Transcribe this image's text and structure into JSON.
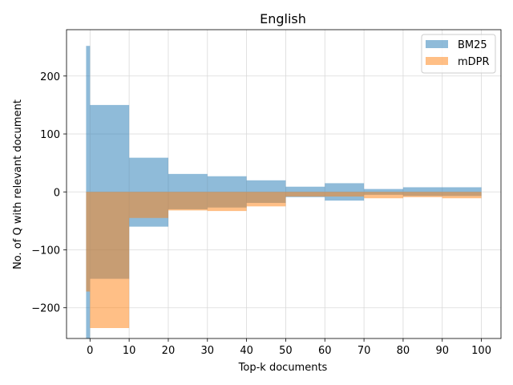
{
  "chart_data": {
    "type": "bar",
    "title": "English",
    "xlabel": "Top-k documents",
    "ylabel": "No. of Q with relevant document",
    "xlim": [
      -6,
      105
    ],
    "ylim": [
      -253,
      280
    ],
    "xticks": [
      0,
      10,
      20,
      30,
      40,
      50,
      60,
      70,
      80,
      90,
      100
    ],
    "xtick_labels": [
      "0",
      "10",
      "20",
      "30",
      "40",
      "50",
      "60",
      "70",
      "80",
      "90",
      "100"
    ],
    "yticks": [
      -200,
      -100,
      0,
      100,
      200
    ],
    "ytick_labels": [
      "−200",
      "−100",
      "0",
      "100",
      "200"
    ],
    "grid": true,
    "legend_position": "top-right",
    "series": [
      {
        "name": "BM25",
        "color": "#1f77b4",
        "alpha": 0.5,
        "bars": [
          {
            "x0": -1,
            "x1": 0,
            "top": 252,
            "bottom": 0
          },
          {
            "x0": -1,
            "x1": 0,
            "top": 0,
            "bottom": -260
          },
          {
            "x0": 0,
            "x1": 10,
            "top": 150,
            "bottom": 0
          },
          {
            "x0": 0,
            "x1": 10,
            "top": 0,
            "bottom": -150
          },
          {
            "x0": 10,
            "x1": 20,
            "top": 59,
            "bottom": 0
          },
          {
            "x0": 10,
            "x1": 20,
            "top": 0,
            "bottom": -60
          },
          {
            "x0": 20,
            "x1": 30,
            "top": 31,
            "bottom": 0
          },
          {
            "x0": 20,
            "x1": 30,
            "top": 0,
            "bottom": -30
          },
          {
            "x0": 30,
            "x1": 40,
            "top": 27,
            "bottom": 0
          },
          {
            "x0": 30,
            "x1": 40,
            "top": 0,
            "bottom": -27
          },
          {
            "x0": 40,
            "x1": 50,
            "top": 20,
            "bottom": 0
          },
          {
            "x0": 40,
            "x1": 50,
            "top": 0,
            "bottom": -19
          },
          {
            "x0": 50,
            "x1": 60,
            "top": 9,
            "bottom": 0
          },
          {
            "x0": 50,
            "x1": 60,
            "top": 0,
            "bottom": -9
          },
          {
            "x0": 60,
            "x1": 70,
            "top": 15,
            "bottom": 0
          },
          {
            "x0": 60,
            "x1": 70,
            "top": 0,
            "bottom": -15
          },
          {
            "x0": 70,
            "x1": 80,
            "top": 5,
            "bottom": 0
          },
          {
            "x0": 70,
            "x1": 80,
            "top": 0,
            "bottom": -5
          },
          {
            "x0": 80,
            "x1": 90,
            "top": 8,
            "bottom": 0
          },
          {
            "x0": 80,
            "x1": 90,
            "top": 0,
            "bottom": -7
          },
          {
            "x0": 90,
            "x1": 100,
            "top": 8,
            "bottom": 0
          },
          {
            "x0": 90,
            "x1": 100,
            "top": 0,
            "bottom": -7
          }
        ]
      },
      {
        "name": "mDPR",
        "color": "#ff7f0e",
        "alpha": 0.5,
        "bars": [
          {
            "x0": -1,
            "x1": 0,
            "top": 0,
            "bottom": -172
          },
          {
            "x0": 0,
            "x1": 10,
            "top": 0,
            "bottom": -235
          },
          {
            "x0": 10,
            "x1": 20,
            "top": 0,
            "bottom": -45
          },
          {
            "x0": 20,
            "x1": 30,
            "top": 0,
            "bottom": -32
          },
          {
            "x0": 30,
            "x1": 40,
            "top": 0,
            "bottom": -33
          },
          {
            "x0": 40,
            "x1": 50,
            "top": 0,
            "bottom": -25
          },
          {
            "x0": 50,
            "x1": 60,
            "top": 0,
            "bottom": -8
          },
          {
            "x0": 60,
            "x1": 70,
            "top": 0,
            "bottom": -8
          },
          {
            "x0": 70,
            "x1": 80,
            "top": 0,
            "bottom": -11
          },
          {
            "x0": 80,
            "x1": 90,
            "top": 0,
            "bottom": -9
          },
          {
            "x0": 90,
            "x1": 100,
            "top": 0,
            "bottom": -11
          }
        ]
      }
    ]
  }
}
